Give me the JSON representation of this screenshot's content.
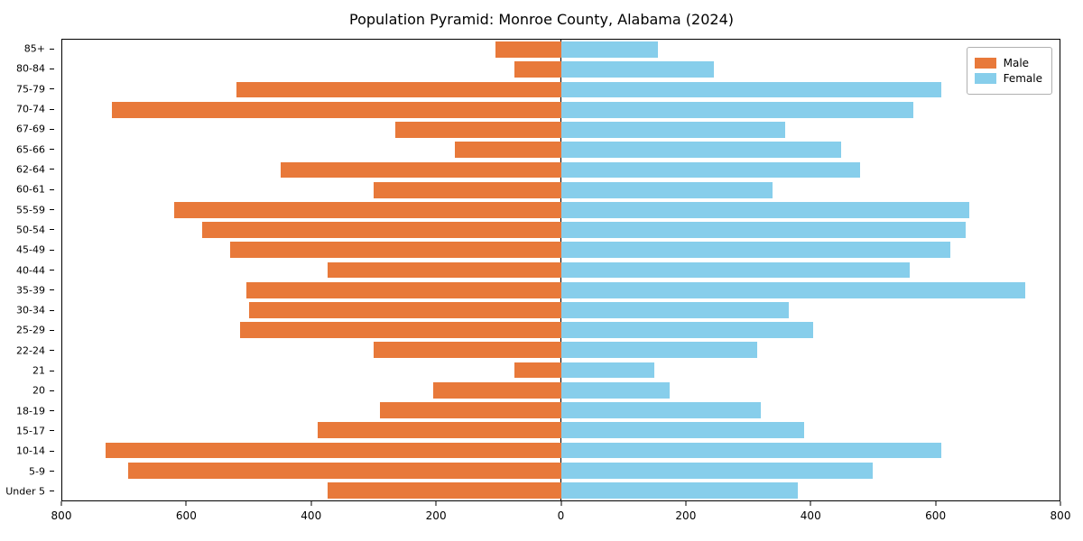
{
  "title": "Population Pyramid: Monroe County, Alabama (2024)",
  "legend": {
    "male_label": "Male",
    "female_label": "Female"
  },
  "colors": {
    "male": "#e8793a",
    "female": "#87ceeb",
    "axis": "#000000",
    "legend_border": "#b0b0b0"
  },
  "chart_data": {
    "type": "bar",
    "orientation": "horizontal-pyramid",
    "title": "Population Pyramid: Monroe County, Alabama (2024)",
    "categories": [
      "85+",
      "80-84",
      "75-79",
      "70-74",
      "67-69",
      "65-66",
      "62-64",
      "60-61",
      "55-59",
      "50-54",
      "45-49",
      "40-44",
      "35-39",
      "30-34",
      "25-29",
      "22-24",
      "21",
      "20",
      "18-19",
      "15-17",
      "10-14",
      "5-9",
      "Under 5"
    ],
    "series": [
      {
        "name": "Male",
        "color": "#e8793a",
        "side": "left",
        "values": [
          105,
          75,
          520,
          720,
          265,
          170,
          450,
          300,
          620,
          575,
          530,
          375,
          505,
          500,
          515,
          300,
          75,
          205,
          290,
          390,
          730,
          695,
          375
        ]
      },
      {
        "name": "Female",
        "color": "#87ceeb",
        "side": "right",
        "values": [
          155,
          245,
          610,
          565,
          360,
          450,
          480,
          340,
          655,
          650,
          625,
          560,
          745,
          365,
          405,
          315,
          150,
          175,
          320,
          390,
          610,
          500,
          380
        ]
      }
    ],
    "xlim": [
      -800,
      800
    ],
    "xticks": [
      800,
      600,
      400,
      200,
      0,
      200,
      400,
      600,
      800
    ],
    "ylabel": "",
    "xlabel": "",
    "grid": false,
    "legend_position": "upper right",
    "bar_relative_height": 0.8
  }
}
